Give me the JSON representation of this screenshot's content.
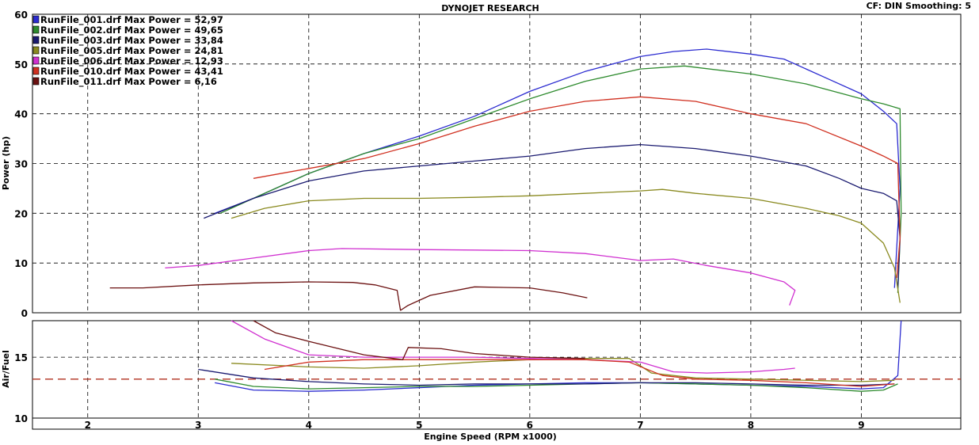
{
  "header": {
    "title": "DYNOJET RESEARCH",
    "settings": "CF: DIN  Smoothing: 5"
  },
  "chart_data": {
    "type": "line",
    "xlabel": "Engine Speed (RPM x1000)",
    "xlim": [
      1.5,
      9.9
    ],
    "xticks": [
      "2",
      "3",
      "4",
      "5",
      "6",
      "7",
      "8",
      "9"
    ],
    "grid": true,
    "panels": [
      {
        "name": "power",
        "ylabel": "Power (hp)",
        "ylim": [
          0,
          60
        ],
        "yticks": [
          "0",
          "10",
          "20",
          "30",
          "40",
          "50",
          "60"
        ]
      },
      {
        "name": "afr",
        "ylabel": "Air/Fuel",
        "ylim": [
          10,
          18
        ],
        "yticks": [
          "10",
          "15"
        ],
        "reference_line": 13.2,
        "reference_color": "#b03020"
      }
    ],
    "legend_position": "top-left",
    "series": [
      {
        "name": "RunFile_001.drf Max Power = 52,97",
        "color": "#2b2bd0",
        "power": [
          [
            3.15,
            20
          ],
          [
            3.5,
            23
          ],
          [
            4,
            28
          ],
          [
            4.5,
            32
          ],
          [
            5,
            35.5
          ],
          [
            5.5,
            39.5
          ],
          [
            6,
            44.5
          ],
          [
            6.5,
            48.5
          ],
          [
            7,
            51.5
          ],
          [
            7.3,
            52.5
          ],
          [
            7.6,
            53
          ],
          [
            8,
            52
          ],
          [
            8.3,
            51
          ],
          [
            8.7,
            47
          ],
          [
            9,
            44
          ],
          [
            9.2,
            40.5
          ],
          [
            9.32,
            38
          ],
          [
            9.35,
            25
          ],
          [
            9.3,
            5
          ]
        ],
        "afr": [
          [
            3.15,
            12.9
          ],
          [
            3.5,
            12.3
          ],
          [
            4,
            12.2
          ],
          [
            4.5,
            12.3
          ],
          [
            5,
            12.5
          ],
          [
            5.5,
            12.7
          ],
          [
            6,
            12.8
          ],
          [
            6.5,
            12.9
          ],
          [
            7,
            12.9
          ],
          [
            7.5,
            12.8
          ],
          [
            8,
            12.7
          ],
          [
            8.5,
            12.6
          ],
          [
            9,
            12.4
          ],
          [
            9.2,
            12.5
          ],
          [
            9.33,
            13.5
          ],
          [
            9.36,
            18
          ]
        ]
      },
      {
        "name": "RunFile_002.drf Max Power = 49,65",
        "color": "#2e8b2e",
        "power": [
          [
            3.2,
            20
          ],
          [
            3.5,
            23
          ],
          [
            4,
            28
          ],
          [
            4.5,
            32
          ],
          [
            5,
            35
          ],
          [
            5.5,
            39
          ],
          [
            6,
            43
          ],
          [
            6.5,
            46.5
          ],
          [
            7,
            49
          ],
          [
            7.4,
            49.6
          ],
          [
            8,
            48
          ],
          [
            8.5,
            46
          ],
          [
            9,
            43
          ],
          [
            9.2,
            42
          ],
          [
            9.35,
            41
          ],
          [
            9.36,
            20
          ],
          [
            9.33,
            4
          ]
        ],
        "afr": [
          [
            3.15,
            13.2
          ],
          [
            3.5,
            12.6
          ],
          [
            4,
            12.4
          ],
          [
            4.5,
            12.5
          ],
          [
            5,
            12.6
          ],
          [
            5.5,
            12.6
          ],
          [
            6,
            12.7
          ],
          [
            6.5,
            12.8
          ],
          [
            7,
            12.9
          ],
          [
            7.5,
            12.8
          ],
          [
            8,
            12.7
          ],
          [
            8.5,
            12.5
          ],
          [
            9,
            12.2
          ],
          [
            9.2,
            12.3
          ],
          [
            9.33,
            12.8
          ]
        ]
      },
      {
        "name": "RunFile_003.drf Max Power = 33,84",
        "color": "#1a1a70",
        "power": [
          [
            3.05,
            19
          ],
          [
            3.5,
            23
          ],
          [
            4,
            26.5
          ],
          [
            4.5,
            28.5
          ],
          [
            5,
            29.5
          ],
          [
            5.5,
            30.5
          ],
          [
            6,
            31.5
          ],
          [
            6.5,
            33
          ],
          [
            7,
            33.8
          ],
          [
            7.5,
            33
          ],
          [
            8,
            31.5
          ],
          [
            8.5,
            29.5
          ],
          [
            8.8,
            27
          ],
          [
            9,
            25
          ],
          [
            9.2,
            24
          ],
          [
            9.32,
            22.5
          ],
          [
            9.35,
            15
          ],
          [
            9.33,
            5
          ]
        ],
        "afr": [
          [
            3,
            14
          ],
          [
            3.5,
            13.3
          ],
          [
            4,
            13
          ],
          [
            4.5,
            12.8
          ],
          [
            5,
            12.7
          ],
          [
            5.5,
            12.8
          ],
          [
            6,
            12.8
          ],
          [
            6.5,
            12.8
          ],
          [
            7,
            12.9
          ],
          [
            7.5,
            12.9
          ],
          [
            8,
            12.8
          ],
          [
            8.5,
            12.7
          ],
          [
            9,
            12.7
          ],
          [
            9.3,
            12.8
          ]
        ]
      },
      {
        "name": "RunFile_005.drf Max Power = 24,81",
        "color": "#8a8a20",
        "power": [
          [
            3.3,
            19
          ],
          [
            3.6,
            21
          ],
          [
            4,
            22.5
          ],
          [
            4.5,
            23
          ],
          [
            5,
            23
          ],
          [
            5.5,
            23.2
          ],
          [
            6,
            23.5
          ],
          [
            6.5,
            24
          ],
          [
            7,
            24.5
          ],
          [
            7.2,
            24.8
          ],
          [
            7.5,
            24
          ],
          [
            8,
            23
          ],
          [
            8.5,
            21
          ],
          [
            8.8,
            19.5
          ],
          [
            9,
            18
          ],
          [
            9.2,
            14
          ],
          [
            9.3,
            9
          ],
          [
            9.35,
            2
          ]
        ],
        "afr": [
          [
            3.3,
            14.5
          ],
          [
            4,
            14.2
          ],
          [
            4.5,
            14.1
          ],
          [
            5,
            14.3
          ],
          [
            5.5,
            14.6
          ],
          [
            6,
            14.8
          ],
          [
            6.5,
            14.9
          ],
          [
            6.9,
            14.9
          ],
          [
            7.1,
            13.7
          ],
          [
            7.5,
            13.3
          ],
          [
            8,
            13.2
          ],
          [
            8.5,
            13.1
          ],
          [
            9,
            13
          ],
          [
            9.3,
            13.1
          ]
        ]
      },
      {
        "name": "RunFile_006.drf Max Power = 12,93",
        "color": "#d030d0",
        "power": [
          [
            2.7,
            9
          ],
          [
            3,
            9.5
          ],
          [
            3.5,
            11
          ],
          [
            4,
            12.5
          ],
          [
            4.3,
            12.9
          ],
          [
            5,
            12.7
          ],
          [
            5.5,
            12.6
          ],
          [
            6,
            12.5
          ],
          [
            6.5,
            11.9
          ],
          [
            7,
            10.5
          ],
          [
            7.3,
            10.8
          ],
          [
            7.6,
            9.5
          ],
          [
            8,
            8
          ],
          [
            8.3,
            6.2
          ],
          [
            8.4,
            4.5
          ],
          [
            8.35,
            1.5
          ]
        ],
        "afr": [
          [
            3.3,
            18
          ],
          [
            3.6,
            16.5
          ],
          [
            4,
            15.2
          ],
          [
            4.5,
            15
          ],
          [
            5,
            15
          ],
          [
            5.5,
            15
          ],
          [
            6,
            14.9
          ],
          [
            6.5,
            14.8
          ],
          [
            7,
            14.6
          ],
          [
            7.3,
            13.8
          ],
          [
            7.6,
            13.7
          ],
          [
            8,
            13.8
          ],
          [
            8.3,
            14
          ],
          [
            8.4,
            14.1
          ]
        ]
      },
      {
        "name": "RunFile_010.drf Max Power = 43,41",
        "color": "#d03020",
        "power": [
          [
            3.5,
            27
          ],
          [
            4,
            29
          ],
          [
            4.5,
            31
          ],
          [
            5,
            34
          ],
          [
            5.5,
            37.5
          ],
          [
            6,
            40.5
          ],
          [
            6.5,
            42.5
          ],
          [
            7,
            43.4
          ],
          [
            7.5,
            42.5
          ],
          [
            8,
            40
          ],
          [
            8.5,
            38
          ],
          [
            9,
            33.5
          ],
          [
            9.2,
            31.5
          ],
          [
            9.33,
            30
          ],
          [
            9.35,
            15
          ],
          [
            9.32,
            7
          ]
        ],
        "afr": [
          [
            3.6,
            14
          ],
          [
            4,
            14.6
          ],
          [
            4.5,
            14.8
          ],
          [
            5,
            14.8
          ],
          [
            5.5,
            14.8
          ],
          [
            6,
            14.8
          ],
          [
            6.5,
            14.8
          ],
          [
            6.9,
            14.6
          ],
          [
            7.2,
            13.5
          ],
          [
            7.5,
            13.2
          ],
          [
            8,
            13.1
          ],
          [
            8.5,
            12.9
          ],
          [
            9,
            12.6
          ],
          [
            9.3,
            12.8
          ]
        ]
      },
      {
        "name": "RunFile_011.drf Max Power = 6,16",
        "color": "#6b1010",
        "power": [
          [
            2.2,
            5
          ],
          [
            2.5,
            5
          ],
          [
            3,
            5.6
          ],
          [
            3.5,
            6
          ],
          [
            4,
            6.2
          ],
          [
            4.4,
            6.1
          ],
          [
            4.6,
            5.6
          ],
          [
            4.8,
            4.5
          ],
          [
            4.83,
            0.5
          ],
          [
            4.9,
            1.5
          ],
          [
            5.1,
            3.5
          ],
          [
            5.5,
            5.2
          ],
          [
            6,
            5
          ],
          [
            6.3,
            4
          ],
          [
            6.52,
            3
          ]
        ],
        "afr": [
          [
            3.5,
            18
          ],
          [
            3.7,
            17
          ],
          [
            4,
            16.3
          ],
          [
            4.5,
            15.2
          ],
          [
            4.85,
            14.8
          ],
          [
            4.9,
            15.8
          ],
          [
            5.2,
            15.7
          ],
          [
            5.5,
            15.3
          ],
          [
            6,
            15
          ],
          [
            6.5,
            14.9
          ]
        ]
      }
    ]
  }
}
